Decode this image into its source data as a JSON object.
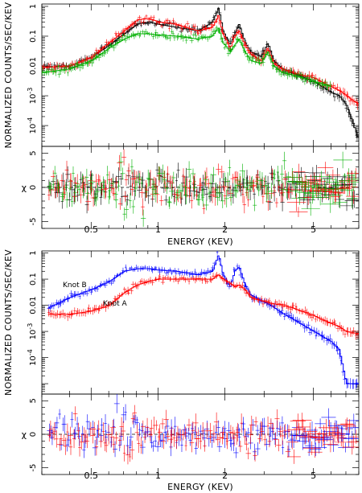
{
  "chart_data": [
    {
      "type": "line",
      "panel": "top",
      "ylabel": "NORMALIZED COUNTS/SEC/KEV",
      "xlabel": "ENERGY (KEV)",
      "xscale": "log",
      "yscale": "log",
      "xlim": [
        0.3,
        8
      ],
      "ylim": [
        2e-05,
        1.2
      ],
      "x_ticks": [
        "0.5",
        "1",
        "2",
        "5"
      ],
      "y_ticks": [
        "1",
        "0.1",
        "0.01",
        "10^-3",
        "10^-4"
      ],
      "series": [
        {
          "color": "#000000",
          "x": [
            0.3,
            0.4,
            0.5,
            0.6,
            0.7,
            0.8,
            0.9,
            1.0,
            1.2,
            1.5,
            1.75,
            1.86,
            1.95,
            2.1,
            2.2,
            2.3,
            2.45,
            2.6,
            2.9,
            3.1,
            3.3,
            3.6,
            4.0,
            5.0,
            6.0,
            6.5,
            7.0,
            8.0
          ],
          "y": [
            0.009,
            0.01,
            0.02,
            0.05,
            0.12,
            0.25,
            0.3,
            0.25,
            0.2,
            0.15,
            0.3,
            0.9,
            0.15,
            0.05,
            0.12,
            0.25,
            0.06,
            0.03,
            0.02,
            0.06,
            0.015,
            0.008,
            0.006,
            0.003,
            0.0013,
            0.001,
            0.0005,
            3e-05
          ]
        },
        {
          "color": "#ff0000",
          "x": [
            0.3,
            0.4,
            0.5,
            0.6,
            0.7,
            0.8,
            0.9,
            1.0,
            1.2,
            1.5,
            1.75,
            1.86,
            1.95,
            2.1,
            2.2,
            2.3,
            2.45,
            2.6,
            2.9,
            3.1,
            3.3,
            3.6,
            4.0,
            5.0,
            6.0,
            6.5,
            7.0,
            8.0
          ],
          "y": [
            0.009,
            0.01,
            0.02,
            0.06,
            0.15,
            0.35,
            0.4,
            0.3,
            0.25,
            0.15,
            0.2,
            0.5,
            0.12,
            0.04,
            0.1,
            0.15,
            0.05,
            0.025,
            0.015,
            0.04,
            0.012,
            0.008,
            0.006,
            0.004,
            0.002,
            0.0015,
            0.001,
            0.0005
          ]
        },
        {
          "color": "#00b000",
          "x": [
            0.3,
            0.4,
            0.5,
            0.6,
            0.7,
            0.8,
            0.9,
            1.0,
            1.2,
            1.5,
            1.75,
            1.86,
            1.95,
            2.1,
            2.2,
            2.3,
            2.45,
            2.6,
            2.9,
            3.1,
            3.3,
            3.6,
            4.0,
            5.0,
            6.0
          ],
          "y": [
            0.006,
            0.008,
            0.015,
            0.04,
            0.08,
            0.12,
            0.12,
            0.11,
            0.1,
            0.08,
            0.1,
            0.2,
            0.06,
            0.03,
            0.05,
            0.08,
            0.03,
            0.015,
            0.012,
            0.03,
            0.01,
            0.006,
            0.005,
            0.003,
            0.002
          ]
        }
      ]
    },
    {
      "type": "scatter",
      "panel": "top-residuals",
      "ylabel": "χ",
      "xlabel": "ENERGY (KEV)",
      "xscale": "log",
      "ylim": [
        -6,
        6
      ],
      "y_ticks": [
        "5",
        "0",
        "-5"
      ],
      "series": [
        {
          "color": "#000000"
        },
        {
          "color": "#ff0000"
        },
        {
          "color": "#00b000"
        }
      ]
    },
    {
      "type": "line",
      "panel": "bottom",
      "ylabel": "NORMALIZED COUNTS/SEC/KEV",
      "xlabel": "ENERGY (KEV)",
      "xscale": "log",
      "yscale": "log",
      "xlim": [
        0.3,
        8
      ],
      "ylim": [
        4e-06,
        1.2
      ],
      "x_ticks": [
        "0.5",
        "1",
        "2",
        "5"
      ],
      "y_ticks": [
        "1",
        "0.1",
        "0.01",
        "10^-3",
        "10^-4"
      ],
      "annotations": [
        "Knot B",
        "Knot A"
      ],
      "series": [
        {
          "name": "Knot B",
          "color": "#0000ff",
          "x": [
            0.32,
            0.4,
            0.5,
            0.6,
            0.7,
            0.8,
            0.9,
            1.0,
            1.2,
            1.5,
            1.75,
            1.86,
            1.95,
            2.1,
            2.2,
            2.3,
            2.45,
            2.6,
            2.9,
            3.2,
            3.6,
            4.0,
            5.0,
            6.0,
            6.5,
            7.0,
            8.0
          ],
          "y": [
            0.008,
            0.02,
            0.04,
            0.08,
            0.2,
            0.25,
            0.25,
            0.22,
            0.2,
            0.15,
            0.2,
            0.9,
            0.15,
            0.05,
            0.2,
            0.3,
            0.06,
            0.025,
            0.015,
            0.01,
            0.005,
            0.003,
            0.001,
            0.0004,
            0.0002,
            1e-05,
            1e-05
          ]
        },
        {
          "name": "Knot A",
          "color": "#ff0000",
          "x": [
            0.32,
            0.4,
            0.5,
            0.6,
            0.7,
            0.8,
            0.9,
            1.0,
            1.2,
            1.5,
            1.75,
            1.86,
            1.95,
            2.1,
            2.2,
            2.3,
            2.45,
            2.6,
            2.9,
            3.2,
            3.6,
            4.0,
            5.0,
            6.0,
            6.5,
            7.0,
            8.0
          ],
          "y": [
            0.0045,
            0.0045,
            0.006,
            0.01,
            0.03,
            0.06,
            0.08,
            0.1,
            0.1,
            0.1,
            0.1,
            0.15,
            0.1,
            0.07,
            0.05,
            0.06,
            0.04,
            0.02,
            0.015,
            0.012,
            0.01,
            0.008,
            0.004,
            0.002,
            0.0015,
            0.001,
            0.0008
          ]
        }
      ]
    },
    {
      "type": "scatter",
      "panel": "bottom-residuals",
      "ylabel": "χ",
      "xlabel": "ENERGY (KEV)",
      "xscale": "log",
      "ylim": [
        -6,
        6
      ],
      "y_ticks": [
        "5",
        "0",
        "-5"
      ],
      "series": [
        {
          "color": "#0000ff"
        },
        {
          "color": "#ff0000"
        }
      ]
    }
  ]
}
